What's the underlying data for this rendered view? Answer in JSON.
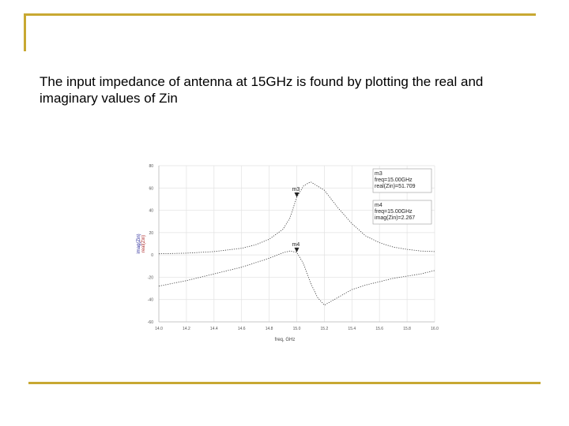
{
  "slide": {
    "text": "The input impedance of antenna at 15GHz is found by plotting the real and imaginary values of Zin",
    "accent_color": "#c8a832"
  },
  "chart_data": {
    "type": "line",
    "title": "",
    "xlabel": "freq, GHz",
    "ylabel": "imag(Zin)\nreal(Zin)",
    "xlim": [
      14.0,
      16.0
    ],
    "ylim": [
      -60,
      80
    ],
    "x_ticks": [
      "14.0",
      "14.2",
      "14.4",
      "14.6",
      "14.8",
      "15.0",
      "15.2",
      "15.4",
      "15.6",
      "15.8",
      "16.0"
    ],
    "y_ticks": [
      "80",
      "60",
      "40",
      "20",
      "0",
      "-20",
      "-40",
      "-60"
    ],
    "grid": true,
    "series": [
      {
        "color": "#333333",
        "x": [
          14.0,
          14.2,
          14.4,
          14.6,
          14.7,
          14.8,
          14.9,
          14.95,
          15.0,
          15.05,
          15.1,
          15.2,
          15.3,
          15.4,
          15.5,
          15.6,
          15.7,
          15.8,
          15.9,
          16.0
        ],
        "y": [
          1,
          1.6,
          3,
          6,
          9,
          14,
          23,
          33,
          51.7,
          62,
          65.5,
          58,
          42,
          28,
          17,
          11,
          7,
          5,
          3.5,
          3
        ]
      },
      {
        "color": "#333333",
        "x": [
          14.0,
          14.2,
          14.4,
          14.6,
          14.8,
          14.9,
          14.95,
          15.0,
          15.05,
          15.1,
          15.15,
          15.2,
          15.3,
          15.4,
          15.5,
          15.6,
          15.7,
          15.8,
          15.9,
          16.0
        ],
        "y": [
          -28,
          -23,
          -17,
          -11,
          -3,
          2,
          3.5,
          2.3,
          -8,
          -25,
          -38,
          -45,
          -38,
          -31,
          -27,
          -24,
          -21,
          -19,
          -17,
          -14
        ]
      }
    ],
    "markers": [
      {
        "label": "m3",
        "x": 15.0,
        "y": 51.709,
        "lines": [
          "m3",
          "freq=15.00GHz",
          "real(Zin)=51.709"
        ]
      },
      {
        "label": "m4",
        "x": 15.0,
        "y": 2.267,
        "lines": [
          "m4",
          "freq=15.00GHz",
          "imag(Zin)=2.267"
        ]
      }
    ]
  }
}
